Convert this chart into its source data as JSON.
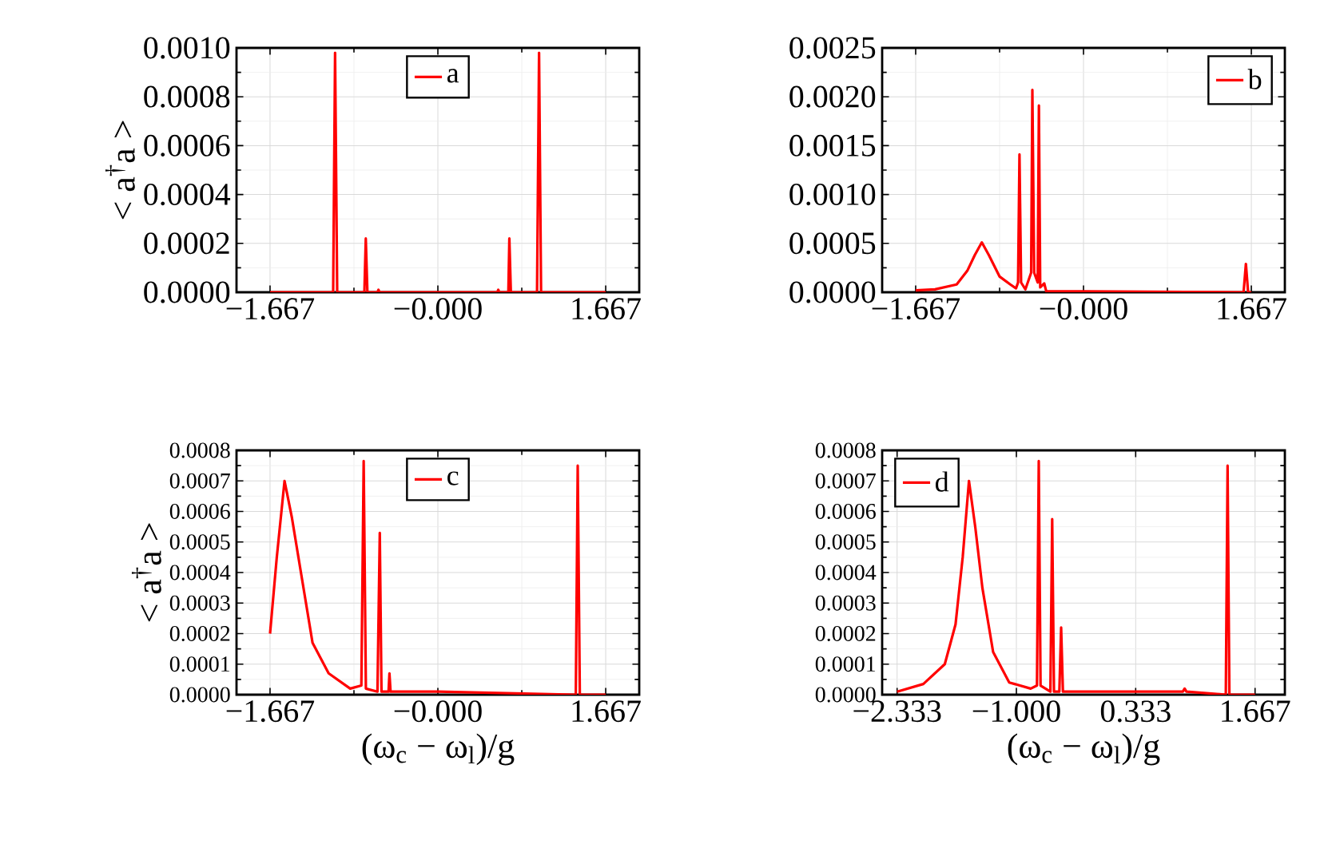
{
  "chart_data": [
    {
      "type": "line",
      "ylabel": "< a$^{†}$a >",
      "xlim": [
        -2,
        2
      ],
      "ylim": [
        0,
        0.001
      ],
      "xticks": [
        {
          "value": -1.667,
          "label": "−1.667"
        },
        {
          "value": 0,
          "label": "−0.000"
        },
        {
          "value": 1.667,
          "label": "1.667"
        }
      ],
      "yticks": [
        {
          "value": 0,
          "label": "0.0000"
        },
        {
          "value": 0.0002,
          "label": "0.0002"
        },
        {
          "value": 0.0004,
          "label": "0.0004"
        },
        {
          "value": 0.0006,
          "label": "0.0006"
        },
        {
          "value": 0.0008,
          "label": "0.0008"
        },
        {
          "value": 0.001,
          "label": "0.0010"
        }
      ],
      "grid": true,
      "legend": "top",
      "series": [
        {
          "name": "a",
          "color": "#ff0000",
          "x": [
            -1.667,
            -1.04,
            -1.021,
            -1.0,
            -0.73,
            -0.716,
            -0.7,
            -0.6,
            -0.59,
            -0.58,
            0.59,
            0.6,
            0.61,
            0.7,
            0.71,
            0.725,
            0.985,
            1.005,
            1.025,
            1.667
          ],
          "values": [
            0,
            0,
            0.00098,
            0,
            0,
            0.00022,
            0,
            0,
            1e-05,
            0,
            0,
            1e-05,
            0,
            0,
            0.00022,
            0,
            0,
            0.00098,
            0,
            0
          ]
        }
      ]
    },
    {
      "type": "line",
      "xlim": [
        -2,
        2
      ],
      "ylim": [
        0,
        0.0025
      ],
      "xticks": [
        {
          "value": -1.667,
          "label": "−1.667"
        },
        {
          "value": 0,
          "label": "−0.000"
        },
        {
          "value": 1.667,
          "label": "1.667"
        }
      ],
      "yticks": [
        {
          "value": 0,
          "label": "0.0000"
        },
        {
          "value": 0.0005,
          "label": "0.0005"
        },
        {
          "value": 0.001,
          "label": "0.0010"
        },
        {
          "value": 0.0015,
          "label": "0.0015"
        },
        {
          "value": 0.002,
          "label": "0.0020"
        },
        {
          "value": 0.0025,
          "label": "0.0025"
        }
      ],
      "grid": true,
      "legend": "top right",
      "series": [
        {
          "name": "b",
          "color": "#ff0000",
          "x": [
            -1.667,
            -1.475,
            -1.26,
            -1.154,
            -1.08,
            -1.01,
            -0.94,
            -0.833,
            -0.727,
            -0.67,
            -0.65,
            -0.636,
            -0.62,
            -0.577,
            -0.52,
            -0.508,
            -0.49,
            -0.455,
            -0.443,
            -0.43,
            -0.39,
            -0.37,
            0,
            1.59,
            1.613,
            1.635,
            1.667
          ],
          "values": [
            2e-05,
            3e-05,
            8e-05,
            0.00022,
            0.00038,
            0.00051,
            0.00038,
            0.00016,
            8e-05,
            4e-05,
            0.0001,
            0.00141,
            0.0001,
            3e-05,
            0.0002,
            0.00207,
            0.0002,
            0.0001,
            0.00191,
            5e-05,
            9e-05,
            1e-05,
            1e-05,
            0,
            0.00029,
            0,
            0
          ]
        }
      ]
    },
    {
      "type": "line",
      "ylabel": "< a$^{†}$a >",
      "xlabel": "(ω$_{c}$ − ω$_{l}$)/g",
      "xlim": [
        -2,
        2
      ],
      "ylim": [
        0,
        0.0008
      ],
      "xticks": [
        {
          "value": -1.667,
          "label": "−1.667"
        },
        {
          "value": 0,
          "label": "−0.000"
        },
        {
          "value": 1.667,
          "label": "1.667"
        }
      ],
      "yticks": [
        {
          "value": 0,
          "label": "0.0000"
        },
        {
          "value": 0.0001,
          "label": "0.0001"
        },
        {
          "value": 0.0002,
          "label": "0.0002"
        },
        {
          "value": 0.0003,
          "label": "0.0003"
        },
        {
          "value": 0.0004,
          "label": "0.0004"
        },
        {
          "value": 0.0005,
          "label": "0.0005"
        },
        {
          "value": 0.0006,
          "label": "0.0006"
        },
        {
          "value": 0.0007,
          "label": "0.0007"
        },
        {
          "value": 0.0008,
          "label": "0.0008"
        }
      ],
      "grid": true,
      "legend": "top",
      "series": [
        {
          "name": "c",
          "color": "#ff0000",
          "x": [
            -1.667,
            -1.6,
            -1.523,
            -1.45,
            -1.35,
            -1.245,
            -1.085,
            -0.871,
            -0.76,
            -0.737,
            -0.715,
            -0.6,
            -0.577,
            -0.56,
            -0.49,
            -0.481,
            -0.47,
            0,
            1.37,
            1.389,
            1.41,
            1.667
          ],
          "values": [
            0.0002,
            0.00045,
            0.0007,
            0.00058,
            0.00038,
            0.00017,
            7e-05,
            2e-05,
            3e-05,
            0.000765,
            2e-05,
            1e-05,
            0.00053,
            1e-05,
            1e-05,
            7e-05,
            1e-05,
            1e-05,
            0,
            0.00075,
            0,
            0
          ]
        }
      ]
    },
    {
      "type": "line",
      "xlabel": "(ω$_{c}$ − ω$_{l}$)/g",
      "xlim": [
        -2.5,
        2
      ],
      "ylim": [
        0,
        0.0008
      ],
      "xticks": [
        {
          "value": -2.333,
          "label": "−2.333"
        },
        {
          "value": -1.0,
          "label": "−1.000"
        },
        {
          "value": 0.333,
          "label": "0.333"
        },
        {
          "value": 1.667,
          "label": "1.667"
        }
      ],
      "yticks": [
        {
          "value": 0,
          "label": "0.0000"
        },
        {
          "value": 0.0001,
          "label": "0.0001"
        },
        {
          "value": 0.0002,
          "label": "0.0002"
        },
        {
          "value": 0.0003,
          "label": "0.0003"
        },
        {
          "value": 0.0004,
          "label": "0.0004"
        },
        {
          "value": 0.0005,
          "label": "0.0005"
        },
        {
          "value": 0.0006,
          "label": "0.0006"
        },
        {
          "value": 0.0007,
          "label": "0.0007"
        },
        {
          "value": 0.0008,
          "label": "0.0008"
        }
      ],
      "grid": true,
      "legend": "top left",
      "series": [
        {
          "name": "d",
          "color": "#ff0000",
          "x": [
            -2.333,
            -2.04,
            -1.8,
            -1.68,
            -1.6,
            -1.53,
            -1.46,
            -1.38,
            -1.26,
            -1.08,
            -0.84,
            -0.77,
            -0.75,
            -0.73,
            -0.62,
            -0.6,
            -0.58,
            -0.52,
            -0.5,
            -0.48,
            0,
            0.86,
            0.88,
            0.9,
            1.34,
            1.36,
            1.38,
            1.667
          ],
          "values": [
            1e-05,
            3.5e-05,
            0.0001,
            0.00023,
            0.00045,
            0.0007,
            0.00055,
            0.00035,
            0.00014,
            4e-05,
            2e-05,
            3e-05,
            0.000765,
            3e-05,
            1e-05,
            0.000575,
            1e-05,
            1e-05,
            0.00022,
            1e-05,
            1e-05,
            1e-05,
            2e-05,
            1e-05,
            0,
            0.00075,
            0,
            0
          ]
        }
      ]
    }
  ]
}
